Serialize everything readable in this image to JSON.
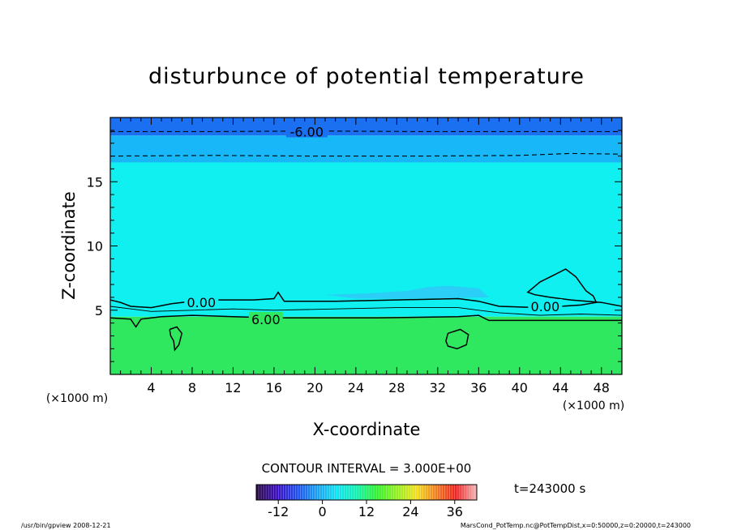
{
  "chart_data": {
    "type": "contour",
    "title": "disturbunce of potential temperature",
    "xlabel": "X-coordinate",
    "ylabel": "Z-coordinate",
    "x_unit_label": "(×1000 m)",
    "z_unit_label": "(×1000 m)",
    "xlim": [
      0,
      50
    ],
    "ylim": [
      0,
      20
    ],
    "x_ticks": [
      4,
      8,
      12,
      16,
      20,
      24,
      28,
      32,
      36,
      40,
      44,
      48
    ],
    "y_ticks": [
      5,
      10,
      15
    ],
    "contour_interval_text": "CONTOUR INTERVAL = 3.000E+00",
    "time_text": "t=243000 s",
    "colorbar": {
      "range": [
        -18,
        42
      ],
      "ticks": [
        -12,
        0,
        12,
        24,
        36
      ],
      "colors": [
        "#2a0a4a",
        "#3a0cc0",
        "#1f4ff0",
        "#1aa0f0",
        "#10e0f0",
        "#10f0b0",
        "#30f030",
        "#90f020",
        "#f0e020",
        "#f08020",
        "#f02020",
        "#f0b0b0"
      ]
    },
    "bands": [
      {
        "z_from": 0,
        "z_to": 4.5,
        "value_range": "3 to 6",
        "color": "#30e860"
      },
      {
        "z_from": 4.5,
        "z_to": 16.5,
        "value_range": "-3 to 0",
        "color": "#10f0f0"
      },
      {
        "z_from": 16.5,
        "z_to": 18.6,
        "value_range": "-6 to -3",
        "color": "#18b8f8"
      },
      {
        "z_from": 18.6,
        "z_to": 20,
        "value_range": "-9 to -6",
        "color": "#1a70f0"
      }
    ],
    "contour_labels": [
      {
        "text": "-6.00",
        "x": 19.2,
        "z": 18.9
      },
      {
        "text": "0.00",
        "x": 8.9,
        "z": 5.6
      },
      {
        "text": "0.00",
        "x": 42.5,
        "z": 5.3
      },
      {
        "text": "6.00",
        "x": 15.2,
        "z": 4.3
      }
    ],
    "contours": [
      {
        "level": -6,
        "style": "dashed",
        "points": [
          [
            0,
            18.9
          ],
          [
            10,
            18.9
          ],
          [
            20,
            18.95
          ],
          [
            30,
            18.9
          ],
          [
            40,
            18.9
          ],
          [
            50,
            18.9
          ]
        ]
      },
      {
        "level": -3,
        "style": "dashed",
        "points": [
          [
            0,
            17.0
          ],
          [
            10,
            17.05
          ],
          [
            20,
            17.0
          ],
          [
            30,
            17.0
          ],
          [
            40,
            17.05
          ],
          [
            45,
            17.2
          ],
          [
            50,
            17.15
          ]
        ]
      },
      {
        "level": 0,
        "style": "solid",
        "points": [
          [
            0,
            5.8
          ],
          [
            1,
            5.6
          ],
          [
            2,
            5.3
          ],
          [
            4,
            5.2
          ],
          [
            6,
            5.5
          ],
          [
            8,
            5.7
          ],
          [
            10,
            5.8
          ],
          [
            14,
            5.8
          ],
          [
            16,
            5.9
          ],
          [
            16.4,
            6.4
          ],
          [
            17,
            5.7
          ],
          [
            22,
            5.7
          ],
          [
            28,
            5.8
          ],
          [
            34,
            5.9
          ],
          [
            36,
            5.7
          ],
          [
            38,
            5.3
          ],
          [
            42,
            5.2
          ],
          [
            46,
            5.4
          ],
          [
            47.5,
            5.6
          ],
          [
            47.2,
            6.1
          ],
          [
            46.5,
            6.5
          ],
          [
            45.5,
            7.6
          ],
          [
            44.5,
            8.2
          ],
          [
            43.5,
            7.8
          ],
          [
            42,
            7.2
          ],
          [
            40.8,
            6.4
          ],
          [
            41.5,
            6.2
          ],
          [
            43,
            6.0
          ],
          [
            45,
            5.8
          ],
          [
            48,
            5.6
          ],
          [
            50,
            5.3
          ]
        ]
      },
      {
        "level": 3,
        "style": "solid",
        "points": [
          [
            0,
            5.3
          ],
          [
            4,
            4.9
          ],
          [
            8,
            5.0
          ],
          [
            12,
            5.1
          ],
          [
            16,
            5.0
          ],
          [
            22,
            5.1
          ],
          [
            28,
            5.2
          ],
          [
            34,
            5.2
          ],
          [
            36,
            5.0
          ],
          [
            38,
            4.8
          ],
          [
            42,
            4.6
          ],
          [
            46,
            4.7
          ],
          [
            50,
            4.6
          ]
        ]
      },
      {
        "level": 6,
        "style": "solid",
        "points": [
          [
            0,
            4.4
          ],
          [
            2,
            4.3
          ],
          [
            2.5,
            3.7
          ],
          [
            3,
            4.3
          ],
          [
            5,
            4.5
          ],
          [
            8,
            4.6
          ],
          [
            12,
            4.5
          ],
          [
            16,
            4.4
          ],
          [
            20,
            4.4
          ],
          [
            26,
            4.4
          ],
          [
            34,
            4.5
          ],
          [
            36,
            4.6
          ],
          [
            37,
            4.2
          ],
          [
            40,
            4.2
          ],
          [
            45,
            4.2
          ],
          [
            50,
            4.2
          ]
        ]
      },
      {
        "level": 9,
        "style": "solid",
        "points": [
          [
            33.0,
            3.2
          ],
          [
            34.2,
            3.5
          ],
          [
            35.0,
            3.1
          ],
          [
            34.8,
            2.3
          ],
          [
            33.9,
            2.0
          ],
          [
            33.0,
            2.2
          ],
          [
            32.8,
            2.6
          ],
          [
            33.0,
            3.2
          ]
        ]
      },
      {
        "level": 9,
        "style": "solid",
        "points": [
          [
            5.8,
            3.5
          ],
          [
            6.5,
            3.7
          ],
          [
            7.0,
            3.2
          ],
          [
            6.7,
            2.3
          ],
          [
            6.3,
            1.9
          ],
          [
            6.2,
            2.6
          ],
          [
            5.9,
            3.0
          ],
          [
            5.8,
            3.5
          ]
        ]
      }
    ],
    "rain_patch": [
      [
        21,
        6.2
      ],
      [
        25,
        6.3
      ],
      [
        29,
        6.5
      ],
      [
        31,
        6.8
      ],
      [
        33,
        6.9
      ],
      [
        36,
        6.7
      ],
      [
        37,
        6.0
      ],
      [
        30,
        5.9
      ],
      [
        24,
        5.9
      ],
      [
        21,
        6.2
      ]
    ]
  },
  "footer": {
    "left": "/usr/bin/gpview   2008-12-21",
    "right": "MarsCond_PotTemp.nc@PotTempDist,x=0:50000,z=0:20000,t=243000"
  }
}
